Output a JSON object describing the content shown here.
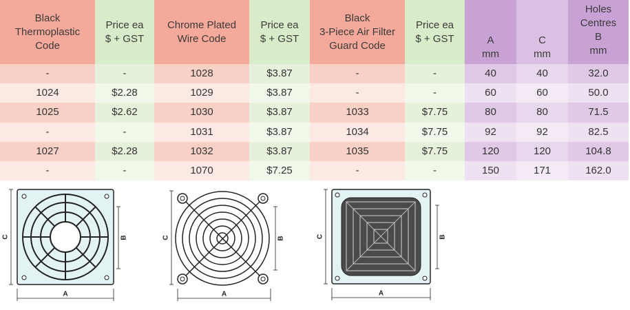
{
  "table": {
    "headers": [
      [
        "Black",
        "Thermoplastic",
        "Code"
      ],
      [
        "Price ea",
        "$ + GST"
      ],
      [
        "Chrome Plated",
        "Wire Code"
      ],
      [
        "Price ea",
        "$ + GST"
      ],
      [
        "Black",
        "3-Piece Air Filter",
        "Guard Code"
      ],
      [
        "Price ea",
        "$ + GST"
      ],
      [
        "A",
        "mm"
      ],
      [
        "C",
        "mm"
      ],
      [
        "Holes",
        "Centres",
        "B",
        "mm"
      ]
    ],
    "rows": [
      [
        "-",
        "-",
        "1028",
        "$3.87",
        "-",
        "-",
        "40",
        "40",
        "32.0"
      ],
      [
        "1024",
        "$2.28",
        "1029",
        "$3.87",
        "-",
        "-",
        "60",
        "60",
        "50.0"
      ],
      [
        "1025",
        "$2.62",
        "1030",
        "$3.87",
        "1033",
        "$7.75",
        "80",
        "80",
        "71.5"
      ],
      [
        "-",
        "-",
        "1031",
        "$3.87",
        "1034",
        "$7.75",
        "92",
        "92",
        "82.5"
      ],
      [
        "1027",
        "$2.28",
        "1032",
        "$3.87",
        "1035",
        "$7.75",
        "120",
        "120",
        "104.8"
      ],
      [
        "-",
        "-",
        "1070",
        "$7.25",
        "-",
        "-",
        "150",
        "171",
        "162.0"
      ]
    ]
  },
  "diagrams": [
    {
      "labels": [
        "C",
        "B",
        "A"
      ]
    },
    {
      "labels": [
        "C",
        "B",
        "A"
      ]
    },
    {
      "labels": [
        "C",
        "B",
        "A"
      ]
    }
  ]
}
